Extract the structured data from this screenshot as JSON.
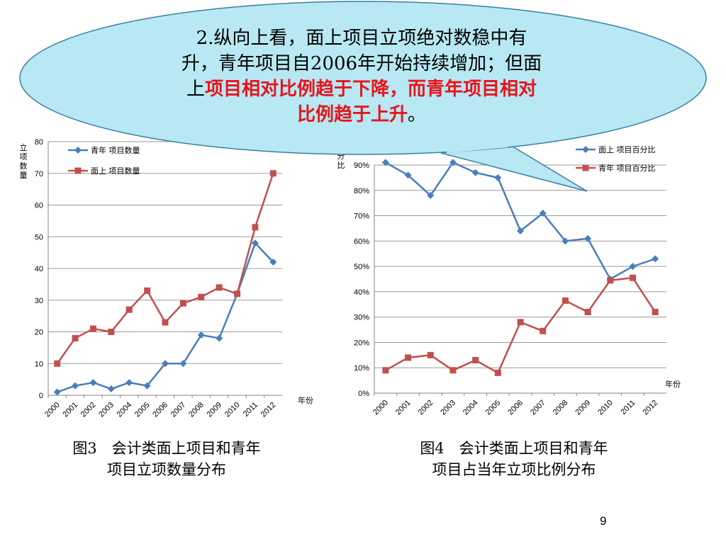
{
  "bubble": {
    "line1": "2.纵向上看，面上项目立项绝对数稳中有",
    "line2": "升，青年项目自2006年开始持续增加；但面",
    "line3_black": "上",
    "line3_red": "项目相对比例趋于下降，而青年项目相对",
    "line4_red": "比例趋于上升",
    "line4_black": "。"
  },
  "captions": {
    "fig3": "图3　会计类面上项目和青年\n项目立项数量分布",
    "fig4": "图4　会计类面上项目和青年\n项目占当年立项比例分布"
  },
  "page_number": "9",
  "colors": {
    "blue": "#4a7ebb",
    "red": "#c0504d",
    "bubble_fill": "#b7e8f3"
  },
  "chart_data": [
    {
      "type": "line",
      "ylabel": "立项数量",
      "xlabel": "年份",
      "ylim": [
        0,
        80
      ],
      "yticks": [
        "0",
        "10",
        "20",
        "30",
        "40",
        "50",
        "60",
        "70",
        "80"
      ],
      "categories": [
        "2000",
        "2001",
        "2002",
        "2003",
        "2004",
        "2005",
        "2006",
        "2007",
        "2008",
        "2009",
        "2010",
        "2011",
        "2012"
      ],
      "legend_position": "top-left",
      "series": [
        {
          "name": "青年 项目数量",
          "color": "#4a7ebb",
          "marker": "diamond",
          "values": [
            1,
            3,
            4,
            2,
            4,
            3,
            10,
            10,
            19,
            18,
            32,
            48,
            42
          ]
        },
        {
          "name": "面上 项目数量",
          "color": "#c0504d",
          "marker": "square",
          "values": [
            10,
            18,
            21,
            20,
            27,
            33,
            23,
            29,
            31,
            34,
            32,
            53,
            70
          ]
        }
      ]
    },
    {
      "type": "line",
      "ylabel": "分比",
      "xlabel": "年份",
      "ylim": [
        0,
        90
      ],
      "yticks": [
        "0%",
        "10%",
        "20%",
        "30%",
        "40%",
        "50%",
        "60%",
        "70%",
        "80%",
        "90%"
      ],
      "categories": [
        "2000",
        "2001",
        "2002",
        "2003",
        "2004",
        "2005",
        "2006",
        "2007",
        "2008",
        "2009",
        "2010",
        "2011",
        "2012"
      ],
      "legend_position": "top-right",
      "series": [
        {
          "name": "面上 项目百分比",
          "color": "#4a7ebb",
          "marker": "diamond",
          "values": [
            91,
            86,
            78,
            91,
            87,
            85,
            64,
            71,
            60,
            61,
            45,
            50,
            53
          ]
        },
        {
          "name": "青年 项目百分比",
          "color": "#c0504d",
          "marker": "square",
          "values": [
            9,
            14,
            15,
            9,
            13,
            8,
            28,
            24.5,
            36.5,
            32,
            44.5,
            45.5,
            32
          ]
        }
      ]
    }
  ]
}
